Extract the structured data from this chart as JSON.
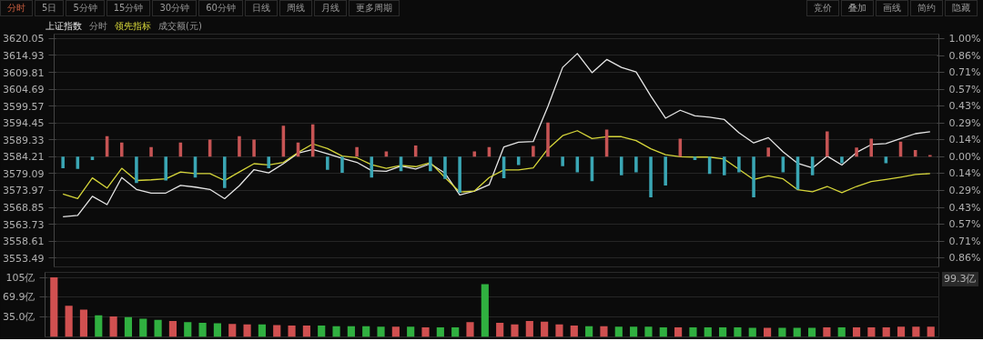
{
  "chart_data": [
    {
      "type": "line",
      "categories": [
        null,
        null,
        null,
        null,
        null,
        null,
        null,
        null,
        null,
        null,
        null,
        null,
        null,
        null,
        null,
        null,
        null,
        null,
        null,
        null,
        null,
        null,
        null,
        null,
        null,
        null,
        null,
        null,
        null,
        null,
        null,
        null,
        null,
        null,
        null,
        null,
        null,
        null,
        null,
        null,
        null,
        null,
        null,
        null,
        null,
        null,
        null,
        null,
        null,
        null,
        null,
        null,
        null,
        null,
        null,
        null,
        null,
        null,
        null,
        null
      ],
      "series": [
        {
          "name": "上证指数",
          "color": "#e6e6e6",
          "values": [
            3566.0,
            3566.4,
            3572.2,
            3569.7,
            3577.9,
            3574.3,
            3573.2,
            3573.2,
            3575.5,
            3575.0,
            3574.3,
            3571.5,
            3575.4,
            3580.3,
            3579.3,
            3582.1,
            3585.3,
            3586.4,
            3585.1,
            3583.7,
            3582.5,
            3580.0,
            3579.8,
            3581.4,
            3580.5,
            3582.1,
            3579.2,
            3572.6,
            3573.8,
            3575.7,
            3587.2,
            3588.6,
            3588.8,
            3599.5,
            3611.3,
            3615.5,
            3609.7,
            3613.7,
            3611.3,
            3609.9,
            3602.6,
            3595.9,
            3598.3,
            3596.6,
            3596.2,
            3595.5,
            3591.5,
            3588.4,
            3590.0,
            3585.7,
            3582.2,
            3580.8,
            3584.4,
            3581.7,
            3585.5,
            3587.9,
            3588.2,
            3589.7,
            3591.2,
            3591.8
          ]
        },
        {
          "name": "领先指标",
          "color": "#d6d63a",
          "values": [
            3572.9,
            3571.5,
            3577.8,
            3574.7,
            3580.7,
            3577.0,
            3577.2,
            3577.5,
            3579.6,
            3579.1,
            3579.1,
            3577.0,
            3579.6,
            3582.1,
            3581.7,
            3582.5,
            3585.5,
            3588.1,
            3586.7,
            3584.4,
            3583.9,
            3581.8,
            3580.7,
            3581.6,
            3581.2,
            3582.4,
            3577.9,
            3573.5,
            3573.8,
            3577.9,
            3580.2,
            3580.2,
            3580.8,
            3586.6,
            3590.6,
            3592.1,
            3589.7,
            3590.3,
            3590.3,
            3589.1,
            3586.6,
            3584.8,
            3584.2,
            3584.1,
            3584.1,
            3583.5,
            3580.4,
            3577.3,
            3578.4,
            3577.5,
            3574.2,
            3573.6,
            3575.2,
            3573.3,
            3575.2,
            3576.7,
            3577.3,
            3578.0,
            3578.8,
            3579.1
          ]
        },
        {
          "type": "bar",
          "base": [
            3584.21,
            3584.21,
            3584.21,
            3584.21,
            3584.21,
            3584.21,
            3584.21,
            3584.21,
            3584.21,
            3584.21,
            3584.21,
            3584.21,
            3584.21,
            3584.21,
            3584.21,
            3584.21,
            3584.21,
            3584.21,
            3584.21,
            3584.21,
            3584.21,
            3584.21,
            3584.21,
            3584.21,
            3584.21,
            3584.21,
            3584.21,
            3584.21,
            3584.21,
            3584.21,
            3584.21,
            3584.21,
            3584.21,
            3584.21,
            3584.21,
            3584.21,
            3584.21,
            3584.21,
            3584.21,
            3584.21,
            3584.21,
            3584.21,
            3584.21,
            3584.21,
            3584.21,
            3584.21,
            3584.21,
            3584.21,
            3584.21,
            3584.21,
            3584.21,
            3584.21,
            3584.21,
            3584.21,
            3584.21,
            3584.21,
            3584.21,
            3584.21,
            3584.21,
            3584.21
          ],
          "values": [
            -3.5,
            -3.7,
            -1,
            6.2,
            4.3,
            -8,
            2.9,
            -7.2,
            4.3,
            -6.3,
            5.2,
            -9.5,
            6.2,
            5.2,
            -3.5,
            9.4,
            4.3,
            9.8,
            -4,
            -4.9,
            2.9,
            -6.3,
            1.6,
            -4.4,
            3.4,
            -4.4,
            -6.7,
            -10.9,
            1.6,
            2.9,
            -6.5,
            -2.5,
            3.3,
            10.4,
            -2.9,
            -4.7,
            -7.4,
            8.2,
            -5.6,
            -4.7,
            -12.3,
            -8.7,
            5.5,
            -1,
            -5.2,
            -5.6,
            -4.7,
            -12.3,
            2.8,
            -4.7,
            -10,
            -5.6,
            7.7,
            -2,
            2.8,
            5.5,
            -2,
            4.6,
            2,
            0.5
          ],
          "colors": [
            "#3aa6b4",
            "#3aa6b4",
            "#3aa6b4",
            "#c65454",
            "#c65454",
            "#3aa6b4",
            "#c65454",
            "#3aa6b4",
            "#c65454",
            "#3aa6b4",
            "#c65454",
            "#3aa6b4",
            "#c65454",
            "#c65454",
            "#3aa6b4",
            "#c65454",
            "#c65454",
            "#c65454",
            "#3aa6b4",
            "#3aa6b4",
            "#c65454",
            "#3aa6b4",
            "#c65454",
            "#3aa6b4",
            "#c65454",
            "#3aa6b4",
            "#3aa6b4",
            "#3aa6b4",
            "#c65454",
            "#c65454",
            "#3aa6b4",
            "#3aa6b4",
            "#c65454",
            "#c65454",
            "#3aa6b4",
            "#3aa6b4",
            "#3aa6b4",
            "#c65454",
            "#3aa6b4",
            "#3aa6b4",
            "#3aa6b4",
            "#3aa6b4",
            "#c65454",
            "#3aa6b4",
            "#3aa6b4",
            "#3aa6b4",
            "#3aa6b4",
            "#3aa6b4",
            "#c65454",
            "#3aa6b4",
            "#3aa6b4",
            "#3aa6b4",
            "#c65454",
            "#3aa6b4",
            "#c65454",
            "#c65454",
            "#3aa6b4",
            "#c65454",
            "#c65454",
            "#c65454"
          ]
        }
      ],
      "ylim": [
        3550.8,
        3621.4
      ],
      "yticks": [
        3620.05,
        3614.93,
        3609.81,
        3604.69,
        3599.57,
        3594.45,
        3589.33,
        3584.21,
        3579.09,
        3573.97,
        3568.85,
        3563.73,
        3558.61,
        3553.49
      ],
      "y2lim": [
        -0.932,
        1.038
      ],
      "y2ticks": [
        {
          "value": 1.0,
          "label": "1.00%"
        },
        {
          "value": 0.857,
          "label": "0.86%"
        },
        {
          "value": 0.714,
          "label": "0.71%"
        },
        {
          "value": 0.571,
          "label": "0.57%"
        },
        {
          "value": 0.428,
          "label": "0.43%"
        },
        {
          "value": 0.286,
          "label": "0.29%"
        },
        {
          "value": 0.143,
          "label": "0.14%"
        },
        {
          "value": 0,
          "label": "0.00%"
        },
        {
          "value": -0.143,
          "label": "0.14%"
        },
        {
          "value": -0.286,
          "label": "0.29%"
        },
        {
          "value": -0.428,
          "label": "0.43%"
        },
        {
          "value": -0.571,
          "label": "0.57%"
        },
        {
          "value": -0.714,
          "label": "0.71%"
        },
        {
          "value": -0.857,
          "label": "0.86%"
        }
      ],
      "grid": "y",
      "tick_labels": "y",
      "annotations": [
        "分时",
        "5日",
        "5分钟",
        "15分钟",
        "30分钟",
        "60分钟",
        "日线",
        "周线",
        "月线",
        "更多周期",
        "竞价",
        "叠加",
        "画线",
        "简约",
        "隐藏",
        "分时",
        "成交额(元)"
      ]
    },
    {
      "type": "bar",
      "categories": [
        null,
        null,
        null,
        null,
        null,
        null,
        null,
        null,
        null,
        null,
        null,
        null,
        null,
        null,
        null,
        null,
        null,
        null,
        null,
        null,
        null,
        null,
        null,
        null,
        null,
        null,
        null,
        null,
        null,
        null,
        null,
        null,
        null,
        null,
        null,
        null,
        null,
        null,
        null,
        null,
        null,
        null,
        null,
        null,
        null,
        null,
        null,
        null,
        null,
        null,
        null,
        null,
        null,
        null,
        null,
        null,
        null,
        null,
        null,
        null
      ],
      "values": [
        105,
        55,
        48,
        38,
        36,
        35,
        32,
        30,
        28,
        26,
        25,
        24,
        23,
        22,
        22,
        21,
        20,
        20,
        20,
        19,
        19,
        19,
        18,
        18,
        18,
        17,
        17,
        17,
        26,
        93,
        25,
        22,
        28,
        27,
        22,
        20,
        19,
        19,
        18,
        18,
        18,
        17,
        17,
        17,
        17,
        17,
        17,
        16,
        16,
        16,
        16,
        16,
        17,
        17,
        17,
        17,
        17,
        18,
        18,
        18
      ],
      "colors": [
        "#d05050",
        "#d05050",
        "#d05050",
        "#30b040",
        "#d05050",
        "#30b040",
        "#30b040",
        "#30b040",
        "#d05050",
        "#30b040",
        "#30b040",
        "#30b040",
        "#d05050",
        "#d05050",
        "#30b040",
        "#d05050",
        "#d05050",
        "#d05050",
        "#30b040",
        "#30b040",
        "#30b040",
        "#30b040",
        "#30b040",
        "#d05050",
        "#30b040",
        "#d05050",
        "#30b040",
        "#30b040",
        "#d05050",
        "#30b040",
        "#d05050",
        "#d05050",
        "#d05050",
        "#d05050",
        "#d05050",
        "#d05050",
        "#30b040",
        "#d05050",
        "#30b040",
        "#30b040",
        "#30b040",
        "#30b040",
        "#d05050",
        "#30b040",
        "#30b040",
        "#30b040",
        "#30b040",
        "#30b040",
        "#d05050",
        "#30b040",
        "#30b040",
        "#30b040",
        "#d05050",
        "#30b040",
        "#d05050",
        "#d05050",
        "#d05050",
        "#d05050",
        "#d05050",
        "#d05050"
      ],
      "ylim": [
        0,
        114
      ],
      "yticks": [
        {
          "value": 35.0,
          "label": "35.0亿"
        },
        {
          "value": 69.9,
          "label": "69.9亿"
        },
        {
          "value": 105,
          "label": "105亿"
        }
      ],
      "grid": "y",
      "tick_labels": "y",
      "annotations": [
        "99.3亿"
      ]
    }
  ]
}
